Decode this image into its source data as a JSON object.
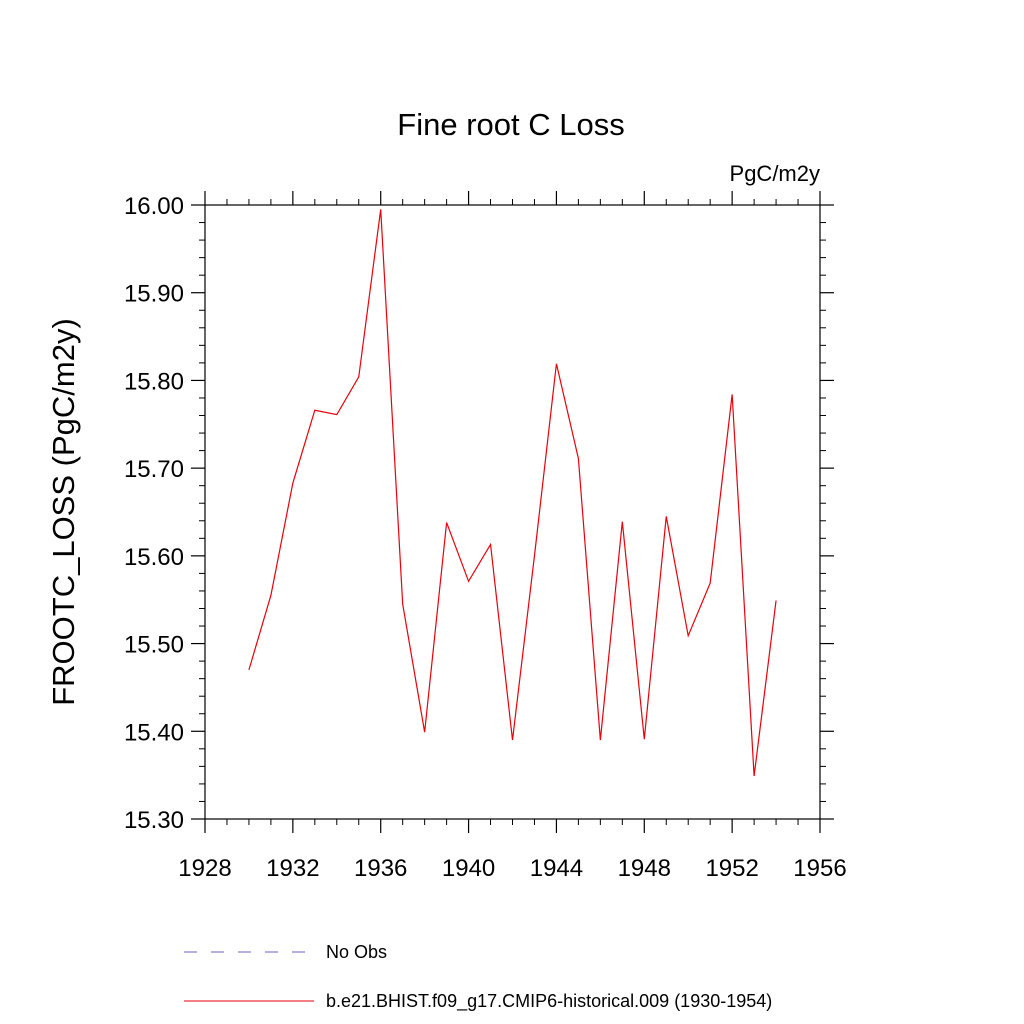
{
  "chart_data": {
    "type": "line",
    "title": "Fine root C Loss",
    "units_label": "PgC/m2y",
    "ylabel": "FROOTC_LOSS  (PgC/m2y)",
    "xlabel": "",
    "xlim": [
      1928,
      1956
    ],
    "ylim": [
      15.3,
      16.0
    ],
    "x_ticks": [
      1928,
      1932,
      1936,
      1940,
      1944,
      1948,
      1952,
      1956
    ],
    "x_tick_labels": [
      "1928",
      "1932",
      "1936",
      "1940",
      "1944",
      "1948",
      "1952",
      "1956"
    ],
    "y_ticks": [
      15.3,
      15.4,
      15.5,
      15.6,
      15.7,
      15.8,
      15.9,
      16.0
    ],
    "y_tick_labels": [
      "15.30",
      "15.40",
      "15.50",
      "15.60",
      "15.70",
      "15.80",
      "15.90",
      "16.00"
    ],
    "grid": false,
    "legend_position": "bottom",
    "series": [
      {
        "name": "b.e21.BHIST.f09_g17.CMIP6-historical.009 (1930-1954)",
        "color": "#e8000b",
        "style": "solid",
        "x": [
          1930,
          1931,
          1932,
          1933,
          1934,
          1935,
          1936,
          1937,
          1938,
          1939,
          1940,
          1941,
          1942,
          1943,
          1944,
          1945,
          1946,
          1947,
          1948,
          1949,
          1950,
          1951,
          1952,
          1953,
          1954
        ],
        "values": [
          15.47,
          15.555,
          15.683,
          15.766,
          15.761,
          15.804,
          15.995,
          15.545,
          15.399,
          15.638,
          15.571,
          15.613,
          15.39,
          15.6,
          15.819,
          15.711,
          15.39,
          15.639,
          15.391,
          15.645,
          15.509,
          15.569,
          15.784,
          15.349,
          15.549
        ]
      }
    ],
    "legend": [
      {
        "label": "No Obs",
        "color": "#6f5fbf",
        "style": "dashed"
      },
      {
        "label": "b.e21.BHIST.f09_g17.CMIP6-historical.009 (1930-1954)",
        "color": "#e8000b",
        "style": "solid"
      }
    ]
  }
}
